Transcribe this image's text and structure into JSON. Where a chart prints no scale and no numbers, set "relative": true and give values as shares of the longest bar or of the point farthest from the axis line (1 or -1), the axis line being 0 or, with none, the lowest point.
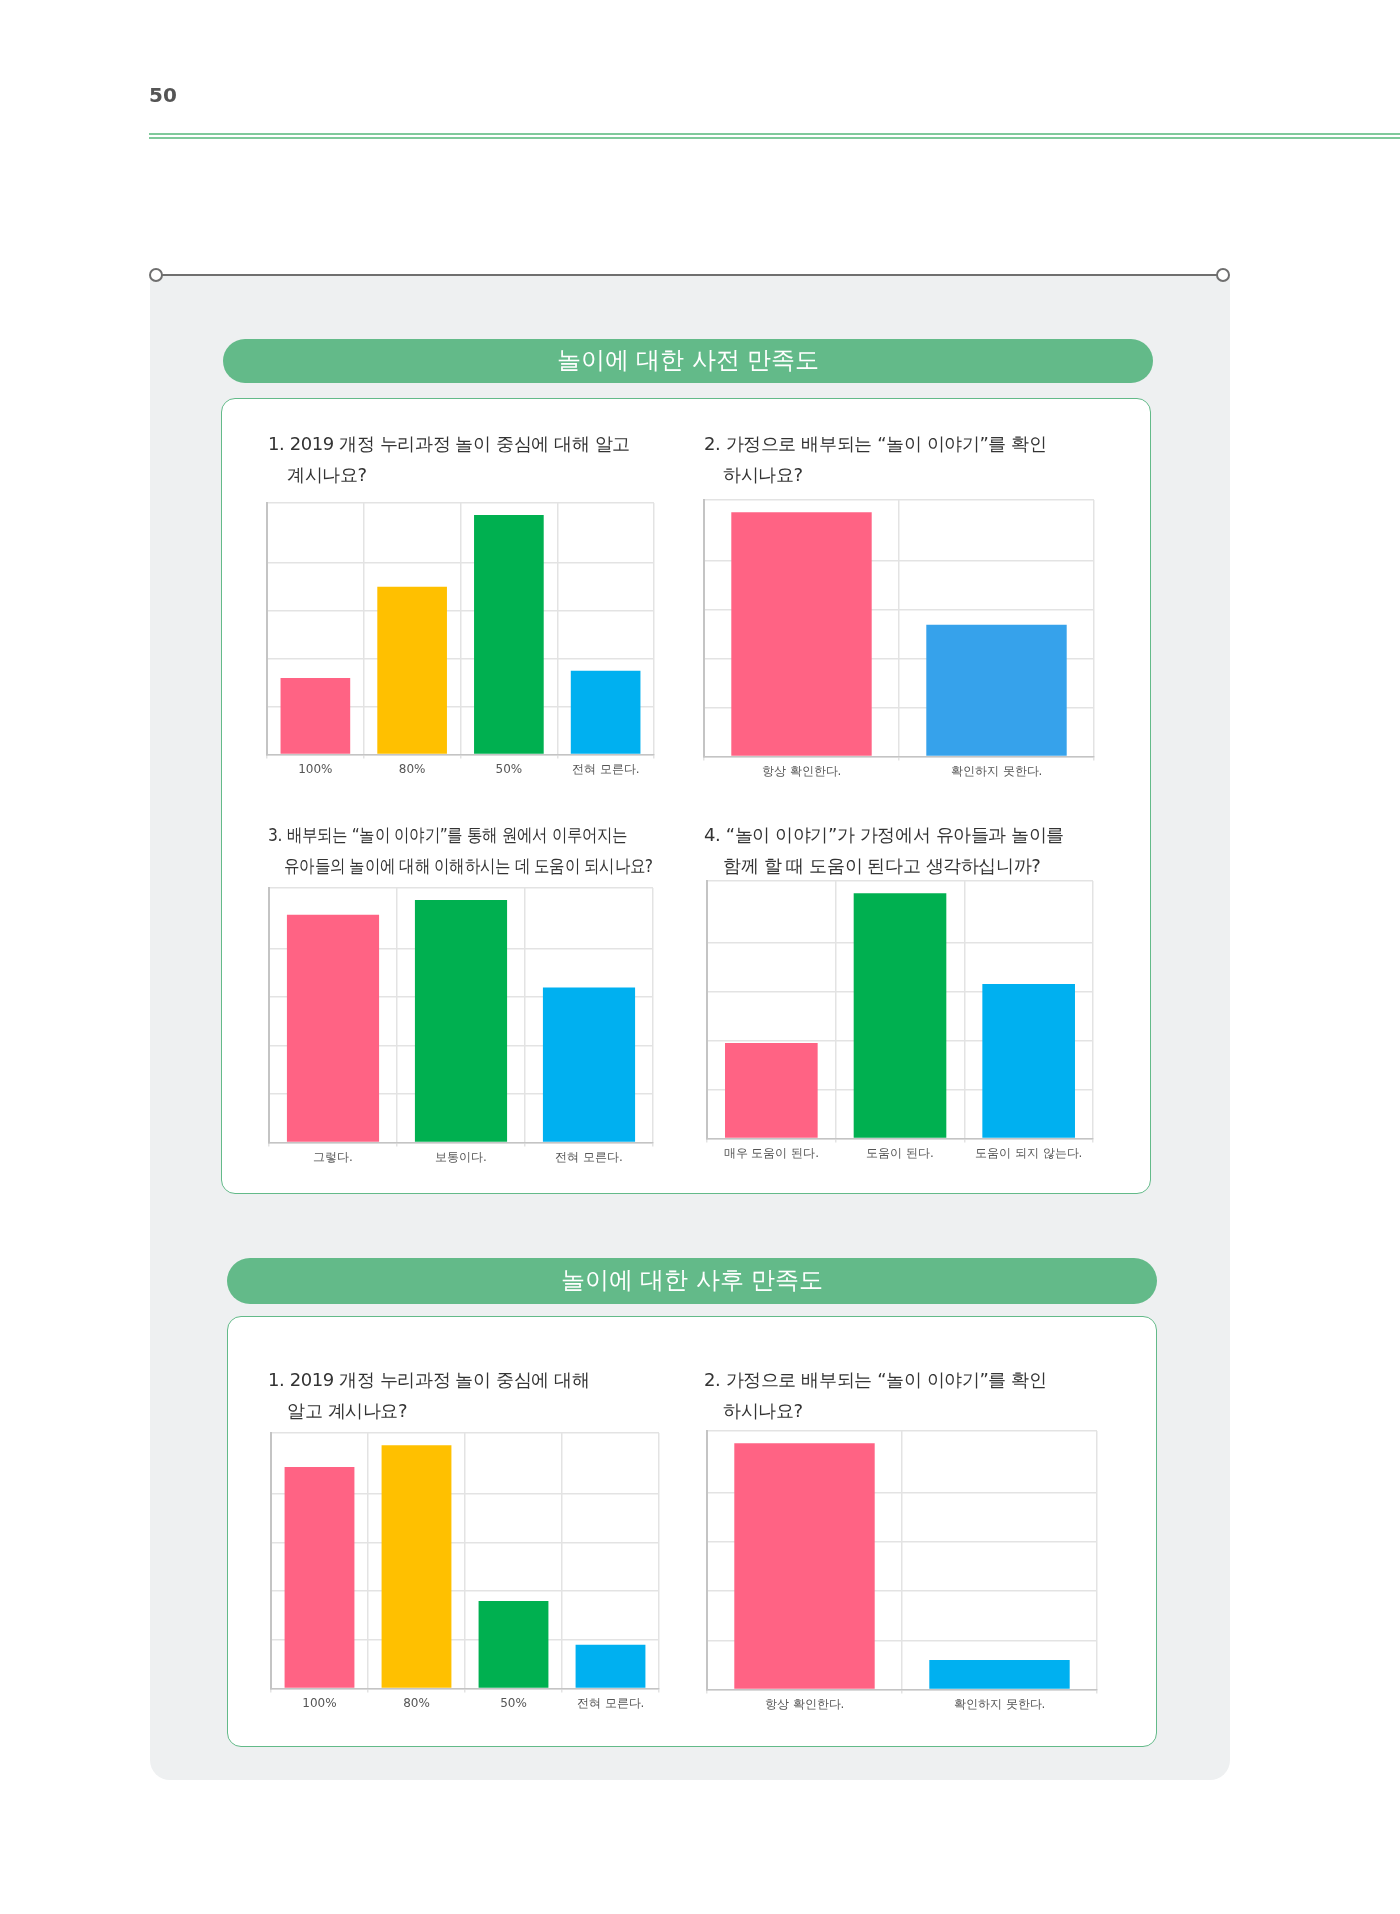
{
  "chart_data": [
    {
      "type": "bar",
      "title": "1. 2019 개정 누리과정 놀이 중심에 대해 알고\n계시나요?",
      "subtitle": "놀이에 대한 사전 만족도",
      "annotations": [
        "50"
      ],
      "categories": [
        "100%",
        "80%",
        "50%",
        "전혀 모른다."
      ],
      "values": [
        0.32,
        0.7,
        1,
        0.35
      ],
      "colors": [
        "#ff6384",
        "#ffc000",
        "#00b050",
        "#00b0f0"
      ],
      "relative": true,
      "grid": true
    },
    {
      "type": "bar",
      "title": "2. 가정으로 배부되는 “놀이 이야기”를 확인\n하시나요?",
      "categories": [
        "항상 확인한다.",
        "확인하지 못한다."
      ],
      "values": [
        1,
        0.54
      ],
      "colors": [
        "#ff6384",
        "#36a2eb"
      ],
      "relative": true,
      "grid": true
    },
    {
      "type": "bar",
      "title": "3. 배부되는 “놀이 이야기”를 통해 원에서 이루어지는\n유아들의 놀이에 대해 이해하시는 데 도움이 되시나요?",
      "categories": [
        "그렇다.",
        "보통이다.",
        "전혀 모른다."
      ],
      "values": [
        0.94,
        1,
        0.64
      ],
      "colors": [
        "#ff6384",
        "#00b050",
        "#00b0f0"
      ],
      "relative": true,
      "grid": true
    },
    {
      "type": "bar",
      "title": "4. “놀이 이야기”가 가정에서 유아들과 놀이를\n함께 할 때 도움이 된다고 생각하십니까?",
      "categories": [
        "매우 도움이 된다.",
        "도움이 된다.",
        "도움이 되지 않는다."
      ],
      "values": [
        0.39,
        1,
        0.63
      ],
      "colors": [
        "#ff6384",
        "#00b050",
        "#00b0f0"
      ],
      "relative": true,
      "grid": true
    },
    {
      "type": "bar",
      "title": "1. 2019 개정 누리과정 놀이 중심에 대해\n알고 계시나요?",
      "subtitle": "놀이에 대한 사후 만족도",
      "categories": [
        "100%",
        "80%",
        "50%",
        "전혀 모른다."
      ],
      "values": [
        0.91,
        1,
        0.36,
        0.18
      ],
      "colors": [
        "#ff6384",
        "#ffc000",
        "#00b050",
        "#00b0f0"
      ],
      "relative": true,
      "grid": true
    },
    {
      "type": "bar",
      "title": "2. 가정으로 배부되는 “놀이 이야기”를 확인\n하시나요?",
      "categories": [
        "항상 확인한다.",
        "확인하지 못한다."
      ],
      "values": [
        1,
        0.12
      ],
      "colors": [
        "#ff6384",
        "#00b0f0"
      ],
      "relative": true,
      "grid": true
    }
  ]
}
